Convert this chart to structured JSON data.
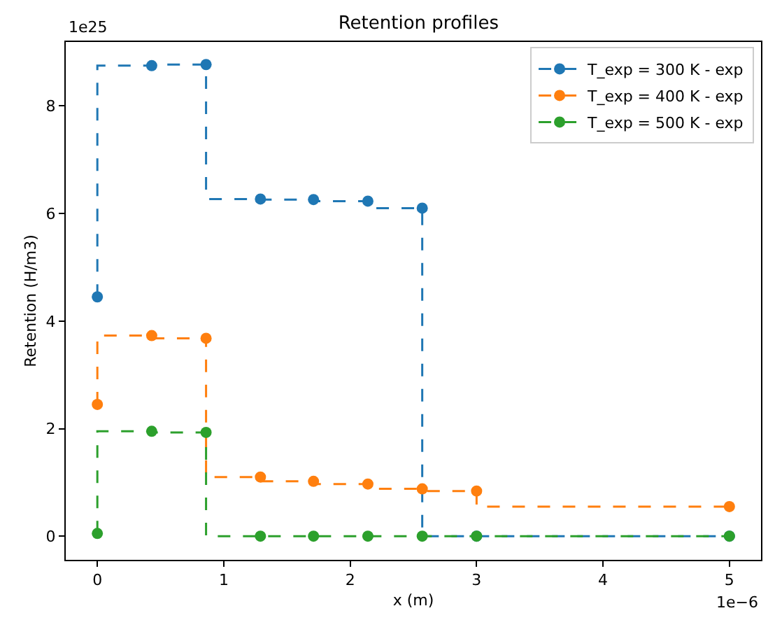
{
  "chart_data": {
    "type": "step",
    "title": "Retention profiles",
    "xlabel": "x (m)",
    "ylabel": "Retention (H/m3)",
    "x": [
      0,
      0.43,
      0.86,
      1.29,
      1.71,
      2.14,
      2.57,
      3.0,
      5.0
    ],
    "series": [
      {
        "name": "T_exp = 300 K - exp",
        "color": "#1f77b4",
        "values": [
          4.45,
          8.75,
          8.77,
          6.27,
          6.26,
          6.23,
          6.1,
          0,
          0
        ]
      },
      {
        "name": "T_exp = 400 K - exp",
        "color": "#ff7f0e",
        "values": [
          2.45,
          3.73,
          3.68,
          1.1,
          1.02,
          0.97,
          0.88,
          0.84,
          0.55
        ]
      },
      {
        "name": "T_exp = 500 K - exp",
        "color": "#2ca02c",
        "values": [
          0.05,
          1.95,
          1.93,
          0,
          0,
          0,
          0,
          0,
          0
        ]
      }
    ],
    "xlim": [
      -0.25,
      5.25
    ],
    "xticks": [
      0,
      1,
      2,
      3,
      4,
      5
    ],
    "ylim": [
      -0.44,
      9.19
    ],
    "yticks": [
      0,
      2,
      4,
      6,
      8
    ],
    "annotations": [
      "1e25",
      "1e−6"
    ],
    "legend": "top right",
    "grid": false,
    "marker": "circle",
    "line_style": "dashed"
  }
}
